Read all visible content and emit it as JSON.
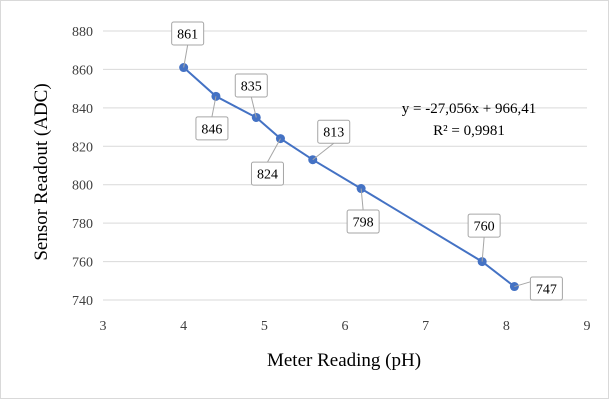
{
  "chart_data": {
    "type": "scatter",
    "xlabel": "Meter Reading (pH)",
    "ylabel": "Sensor Readout (ADC)",
    "xlim": [
      3,
      9
    ],
    "ylim": [
      740,
      880
    ],
    "xticks": [
      "3",
      "4",
      "5",
      "6",
      "7",
      "8",
      "9"
    ],
    "yticks": [
      "740",
      "760",
      "780",
      "800",
      "820",
      "840",
      "860",
      "880"
    ],
    "grid": "horizontal",
    "series": [
      {
        "color": "#4472c4",
        "points": [
          {
            "x": 4.0,
            "y": 861,
            "label": "861"
          },
          {
            "x": 4.4,
            "y": 846,
            "label": "846"
          },
          {
            "x": 4.9,
            "y": 835,
            "label": "835"
          },
          {
            "x": 5.2,
            "y": 824,
            "label": "824"
          },
          {
            "x": 5.6,
            "y": 813,
            "label": "813"
          },
          {
            "x": 6.2,
            "y": 798,
            "label": "798"
          },
          {
            "x": 7.7,
            "y": 760,
            "label": "760"
          },
          {
            "x": 8.1,
            "y": 747,
            "label": "747"
          }
        ]
      }
    ],
    "trendline": {
      "type": "linear",
      "equation": "y = -27,056x + 966,41",
      "r_squared": "R² = 0,9981"
    }
  }
}
